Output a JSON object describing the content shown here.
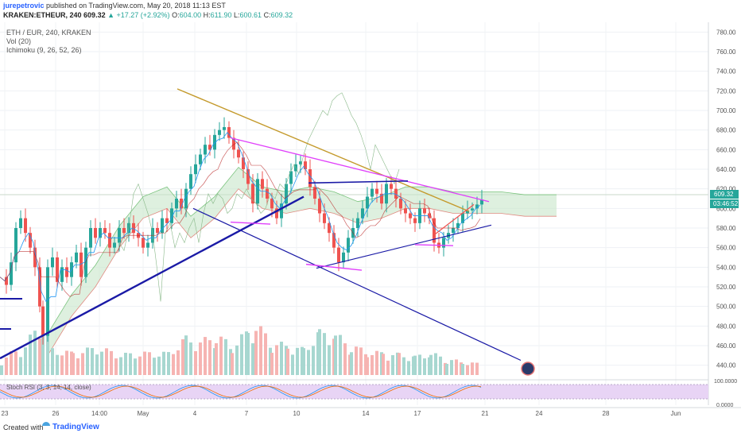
{
  "header": {
    "author": "jurepetrovic",
    "published": "published on TradingView.com, May 20, 2018 11:13 EST",
    "symbol": "KRAKEN:ETHEUR, 240",
    "last": "609.32",
    "change": "▲ +17.27 (+2.92%)",
    "o_label": "O:",
    "o": "604.00",
    "h_label": "H:",
    "h": "611.90",
    "l_label": "L:",
    "l": "600.61",
    "c_label": "C:",
    "c": "609.32"
  },
  "legend": {
    "pair": "ETH / EUR, 240, KRAKEN",
    "vol": "Vol (20)",
    "ichimoku": "Ichimoku (9, 26, 52, 26)"
  },
  "footer": {
    "created": "Created with",
    "brand": "TradingView"
  },
  "colors": {
    "up": "#26a69a",
    "down": "#ef5350",
    "vol_up": "#a7d7d0",
    "vol_down": "#f6b4b2",
    "cloud_green": "#c8e6c9",
    "cloud_red": "#f8d0cc",
    "tenkan": "#2196f3",
    "kijun": "#b71c1c",
    "trend_blue": "#1a1aa6",
    "trend_gold": "#c49a2c",
    "trend_pink": "#e040fb",
    "stoch_fill": "#e8d4f5"
  },
  "chart_data": {
    "type": "candlestick",
    "symbol": "KRAKEN:ETHEUR",
    "interval": "240",
    "price_axis": [
      440,
      460,
      480,
      500,
      520,
      540,
      560,
      580,
      600,
      620,
      640,
      660,
      680,
      700,
      720,
      740,
      760,
      780
    ],
    "price_range": [
      430,
      790
    ],
    "last_price": "609.32",
    "countdown": "03:46:52",
    "x_labels": [
      "23",
      "26",
      "14:00",
      "May",
      "4",
      "7",
      "10",
      "14",
      "17",
      "21",
      "24",
      "28",
      "Jun"
    ],
    "stoch_axis": [
      "100.0000",
      "0.0000"
    ],
    "stoch_label": "Stoch RSI (3, 3, 14, 14, close)",
    "price_path": [
      [
        0,
        530
      ],
      [
        6,
        522
      ],
      [
        12,
        545
      ],
      [
        18,
        580
      ],
      [
        24,
        590
      ],
      [
        30,
        575
      ],
      [
        36,
        560
      ],
      [
        42,
        540
      ],
      [
        48,
        500
      ],
      [
        52,
        470
      ],
      [
        58,
        540
      ],
      [
        64,
        550
      ],
      [
        70,
        525
      ],
      [
        76,
        540
      ],
      [
        82,
        530
      ],
      [
        88,
        545
      ],
      [
        94,
        555
      ],
      [
        100,
        530
      ],
      [
        106,
        560
      ],
      [
        112,
        580
      ],
      [
        118,
        570
      ],
      [
        124,
        580
      ],
      [
        130,
        575
      ],
      [
        136,
        560
      ],
      [
        142,
        565
      ],
      [
        148,
        580
      ],
      [
        154,
        575
      ],
      [
        160,
        585
      ],
      [
        166,
        575
      ],
      [
        172,
        570
      ],
      [
        178,
        560
      ],
      [
        184,
        565
      ],
      [
        190,
        580
      ],
      [
        196,
        575
      ],
      [
        202,
        590
      ],
      [
        208,
        585
      ],
      [
        214,
        600
      ],
      [
        220,
        610
      ],
      [
        226,
        600
      ],
      [
        232,
        620
      ],
      [
        238,
        635
      ],
      [
        244,
        645
      ],
      [
        250,
        655
      ],
      [
        256,
        665
      ],
      [
        262,
        660
      ],
      [
        268,
        675
      ],
      [
        274,
        680
      ],
      [
        280,
        683
      ],
      [
        286,
        672
      ],
      [
        292,
        660
      ],
      [
        298,
        652
      ],
      [
        304,
        640
      ],
      [
        310,
        625
      ],
      [
        316,
        605
      ],
      [
        322,
        630
      ],
      [
        328,
        620
      ],
      [
        334,
        610
      ],
      [
        340,
        600
      ],
      [
        346,
        590
      ],
      [
        352,
        605
      ],
      [
        358,
        625
      ],
      [
        364,
        638
      ],
      [
        370,
        645
      ],
      [
        376,
        648
      ],
      [
        382,
        640
      ],
      [
        388,
        622
      ],
      [
        394,
        610
      ],
      [
        400,
        595
      ],
      [
        406,
        585
      ],
      [
        412,
        575
      ],
      [
        418,
        560
      ],
      [
        424,
        545
      ],
      [
        430,
        555
      ],
      [
        436,
        570
      ],
      [
        442,
        580
      ],
      [
        448,
        590
      ],
      [
        454,
        600
      ],
      [
        460,
        612
      ],
      [
        466,
        620
      ],
      [
        472,
        615
      ],
      [
        478,
        605
      ],
      [
        484,
        625
      ],
      [
        490,
        620
      ],
      [
        496,
        610
      ],
      [
        502,
        600
      ],
      [
        508,
        595
      ],
      [
        514,
        590
      ],
      [
        520,
        585
      ],
      [
        526,
        600
      ],
      [
        532,
        595
      ],
      [
        538,
        590
      ],
      [
        544,
        565
      ],
      [
        550,
        560
      ],
      [
        556,
        570
      ],
      [
        562,
        575
      ],
      [
        568,
        580
      ],
      [
        574,
        585
      ],
      [
        580,
        595
      ],
      [
        586,
        598
      ],
      [
        592,
        600
      ],
      [
        598,
        604
      ],
      [
        604,
        609
      ]
    ],
    "volume_path": [
      [
        0,
        20
      ],
      [
        12,
        30
      ],
      [
        30,
        40
      ],
      [
        52,
        80
      ],
      [
        64,
        35
      ],
      [
        90,
        30
      ],
      [
        120,
        38
      ],
      [
        150,
        28
      ],
      [
        180,
        30
      ],
      [
        210,
        30
      ],
      [
        232,
        50
      ],
      [
        250,
        45
      ],
      [
        270,
        55
      ],
      [
        290,
        40
      ],
      [
        310,
        60
      ],
      [
        320,
        70
      ],
      [
        340,
        45
      ],
      [
        360,
        40
      ],
      [
        380,
        35
      ],
      [
        400,
        58
      ],
      [
        420,
        55
      ],
      [
        440,
        40
      ],
      [
        460,
        32
      ],
      [
        480,
        30
      ],
      [
        500,
        28
      ],
      [
        520,
        25
      ],
      [
        540,
        30
      ],
      [
        560,
        22
      ],
      [
        580,
        18
      ],
      [
        604,
        15
      ]
    ],
    "cloud_path": [
      [
        60,
        450
      ],
      [
        90,
        490
      ],
      [
        120,
        520
      ],
      [
        150,
        560
      ],
      [
        180,
        590
      ],
      [
        210,
        600
      ],
      [
        240,
        570
      ],
      [
        270,
        590
      ],
      [
        300,
        620
      ],
      [
        330,
        600
      ],
      [
        360,
        595
      ],
      [
        390,
        600
      ],
      [
        420,
        595
      ],
      [
        450,
        585
      ],
      [
        480,
        590
      ],
      [
        510,
        600
      ],
      [
        540,
        600
      ],
      [
        570,
        595
      ],
      [
        600,
        595
      ],
      [
        630,
        595
      ],
      [
        660,
        592
      ],
      [
        700,
        592
      ]
    ],
    "trendlines": [
      {
        "from": [
          0,
          447
        ],
        "to": [
          382,
          612
        ]
      },
      {
        "from": [
          243,
          600
        ],
        "to": [
          655,
          445
        ]
      },
      {
        "from": [
          223,
          722
        ],
        "to": [
          590,
          597
        ]
      },
      {
        "from": [
          290,
          672
        ],
        "to": [
          615,
          607
        ]
      },
      {
        "from": [
          398,
          539
        ],
        "to": [
          618,
          583
        ]
      },
      {
        "from": [
          388,
          626
        ],
        "to": [
          513,
          628
        ]
      },
      {
        "from": [
          290,
          586
        ],
        "to": [
          340,
          584
        ]
      },
      {
        "from": [
          385,
          543
        ],
        "to": [
          455,
          537
        ]
      },
      {
        "from": [
          522,
          563
        ],
        "to": [
          570,
          562
        ]
      },
      {
        "from": [
          546,
          573
        ],
        "to": [
          596,
          604
        ]
      }
    ]
  }
}
